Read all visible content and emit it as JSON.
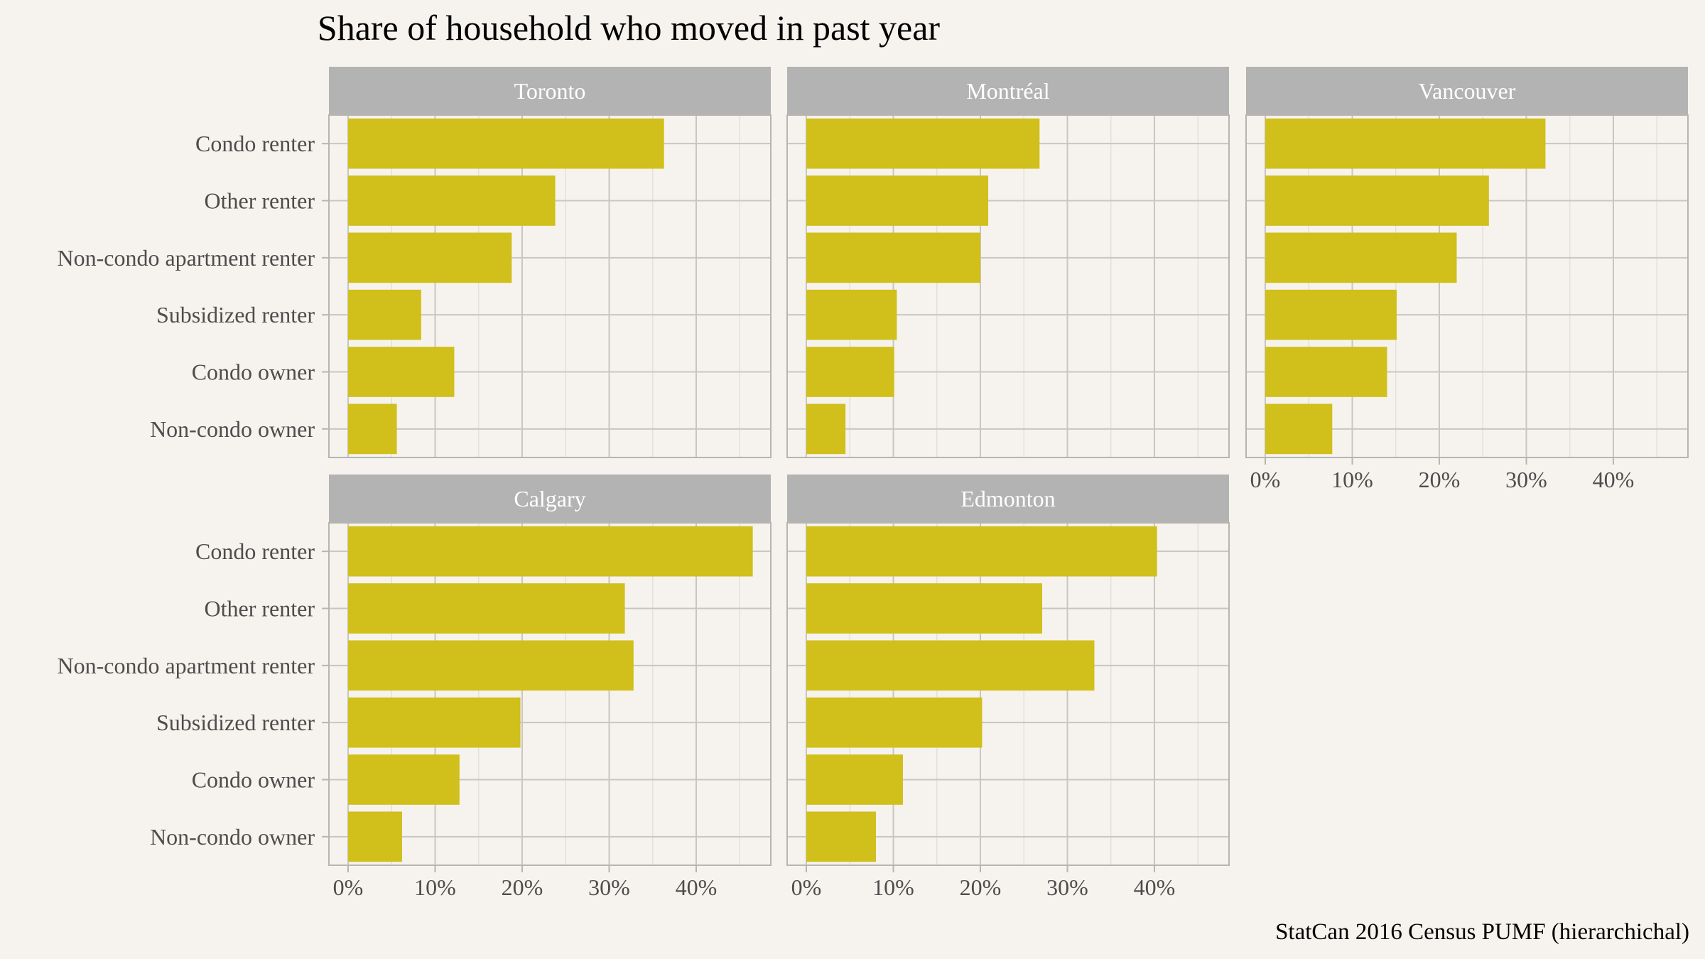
{
  "chart_data": {
    "type": "bar",
    "title": "Share of household who moved in past year",
    "caption": "StatCan 2016 Census PUMF (hierarchichal)",
    "orientation": "horizontal",
    "categories": [
      "Condo renter",
      "Other renter",
      "Non-condo apartment renter",
      "Subsidized renter",
      "Condo owner",
      "Non-condo owner"
    ],
    "xlim": [
      0,
      0.47
    ],
    "x_ticks": [
      0,
      0.1,
      0.2,
      0.3,
      0.4
    ],
    "x_tick_labels": [
      "0%",
      "10%",
      "20%",
      "30%",
      "40%"
    ],
    "grid": true,
    "bar_color": "#d1bf1b",
    "strip_color": "#b3b3b3",
    "facets": [
      {
        "name": "Toronto",
        "values": [
          0.363,
          0.238,
          0.188,
          0.084,
          0.122,
          0.056
        ]
      },
      {
        "name": "Montréal",
        "values": [
          0.268,
          0.209,
          0.2,
          0.104,
          0.101,
          0.045
        ]
      },
      {
        "name": "Vancouver",
        "values": [
          0.322,
          0.257,
          0.22,
          0.151,
          0.14,
          0.077
        ]
      },
      {
        "name": "Calgary",
        "values": [
          0.465,
          0.318,
          0.328,
          0.198,
          0.128,
          0.062
        ]
      },
      {
        "name": "Edmonton",
        "values": [
          0.403,
          0.271,
          0.331,
          0.202,
          0.111,
          0.08
        ]
      }
    ]
  }
}
